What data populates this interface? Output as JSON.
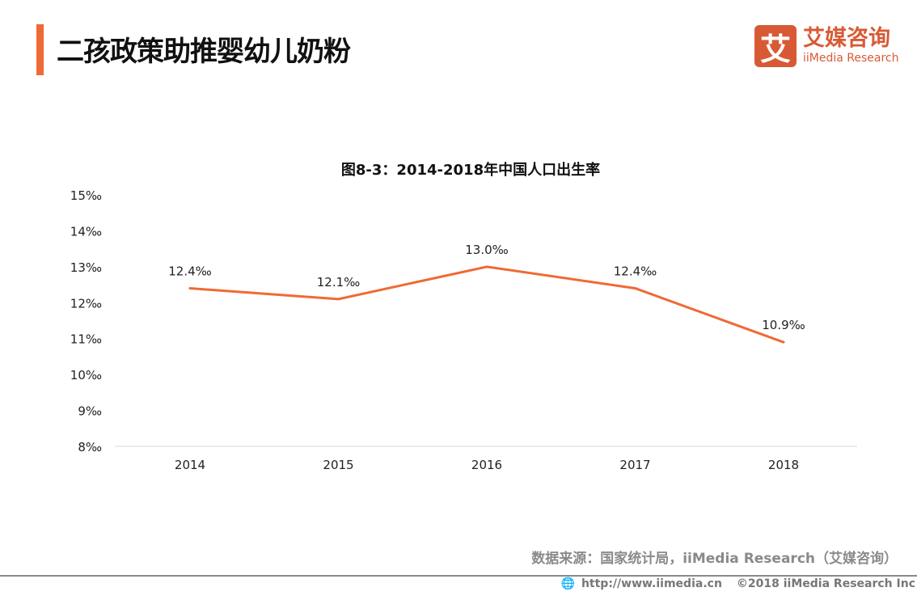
{
  "header": {
    "title": "二孩政策助推婴幼儿奶粉",
    "accent_color": "#ef6a35"
  },
  "logo": {
    "mark": "艾",
    "cn": "艾媒咨询",
    "en": "iiMedia Research",
    "color": "#d85a35"
  },
  "chart_data": {
    "type": "line",
    "title": "图8-3：2014-2018年中国人口出生率",
    "categories": [
      "2014",
      "2015",
      "2016",
      "2017",
      "2018"
    ],
    "series": [
      {
        "values": [
          12.4,
          12.1,
          13.0,
          12.4,
          10.9
        ],
        "color": "#ef6a35"
      }
    ],
    "data_labels": [
      "12.4‰",
      "12.1‰",
      "13.0‰",
      "12.4‰",
      "10.9‰"
    ],
    "ylim": [
      8,
      15
    ],
    "yticks": [
      "8‰",
      "9‰",
      "10‰",
      "11‰",
      "12‰",
      "13‰",
      "14‰",
      "15‰"
    ],
    "grid": false
  },
  "footer": {
    "source": "数据来源：国家统计局，iiMedia Research（艾媒咨询）",
    "url": "http://www.iimedia.cn",
    "copyright": "©2018  iiMedia Research  Inc"
  }
}
